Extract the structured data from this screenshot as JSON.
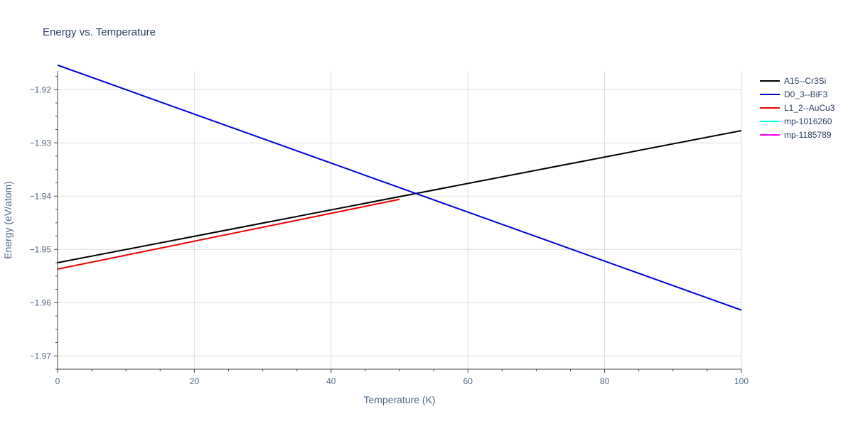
{
  "chart_data": {
    "type": "line",
    "title": "Energy vs. Temperature",
    "xlabel": "Temperature (K)",
    "ylabel": "Energy (eV/atom)",
    "xlim": [
      0,
      100
    ],
    "ylim": [
      -1.9725,
      -1.9165
    ],
    "xticks": [
      0,
      20,
      40,
      60,
      80,
      100
    ],
    "yticks": [
      -1.97,
      -1.96,
      -1.95,
      -1.94,
      -1.93,
      -1.92
    ],
    "xtick_labels": [
      "0",
      "20",
      "40",
      "60",
      "80",
      "100"
    ],
    "ytick_labels": [
      "−1.97",
      "−1.96",
      "−1.95",
      "−1.94",
      "−1.93",
      "−1.92"
    ],
    "grid": true,
    "legend_position": "top-right",
    "series": [
      {
        "name": "A15--Cr3Si",
        "color": "#000000",
        "x": [
          0,
          100
        ],
        "y": [
          -1.9525,
          -1.9277
        ]
      },
      {
        "name": "D0_3--BiF3",
        "color": "#0000dd",
        "x": [
          0,
          100
        ],
        "y": [
          -1.9154,
          -1.9614
        ]
      },
      {
        "name": "L1_2--AuCu3",
        "color": "#ee0000",
        "x": [
          0,
          50
        ],
        "y": [
          -1.9537,
          -1.9406
        ]
      },
      {
        "name": "mp-1016260",
        "color": "#00ffff",
        "x": [],
        "y": []
      },
      {
        "name": "mp-1185789",
        "color": "#ff00ff",
        "x": [],
        "y": []
      }
    ]
  }
}
